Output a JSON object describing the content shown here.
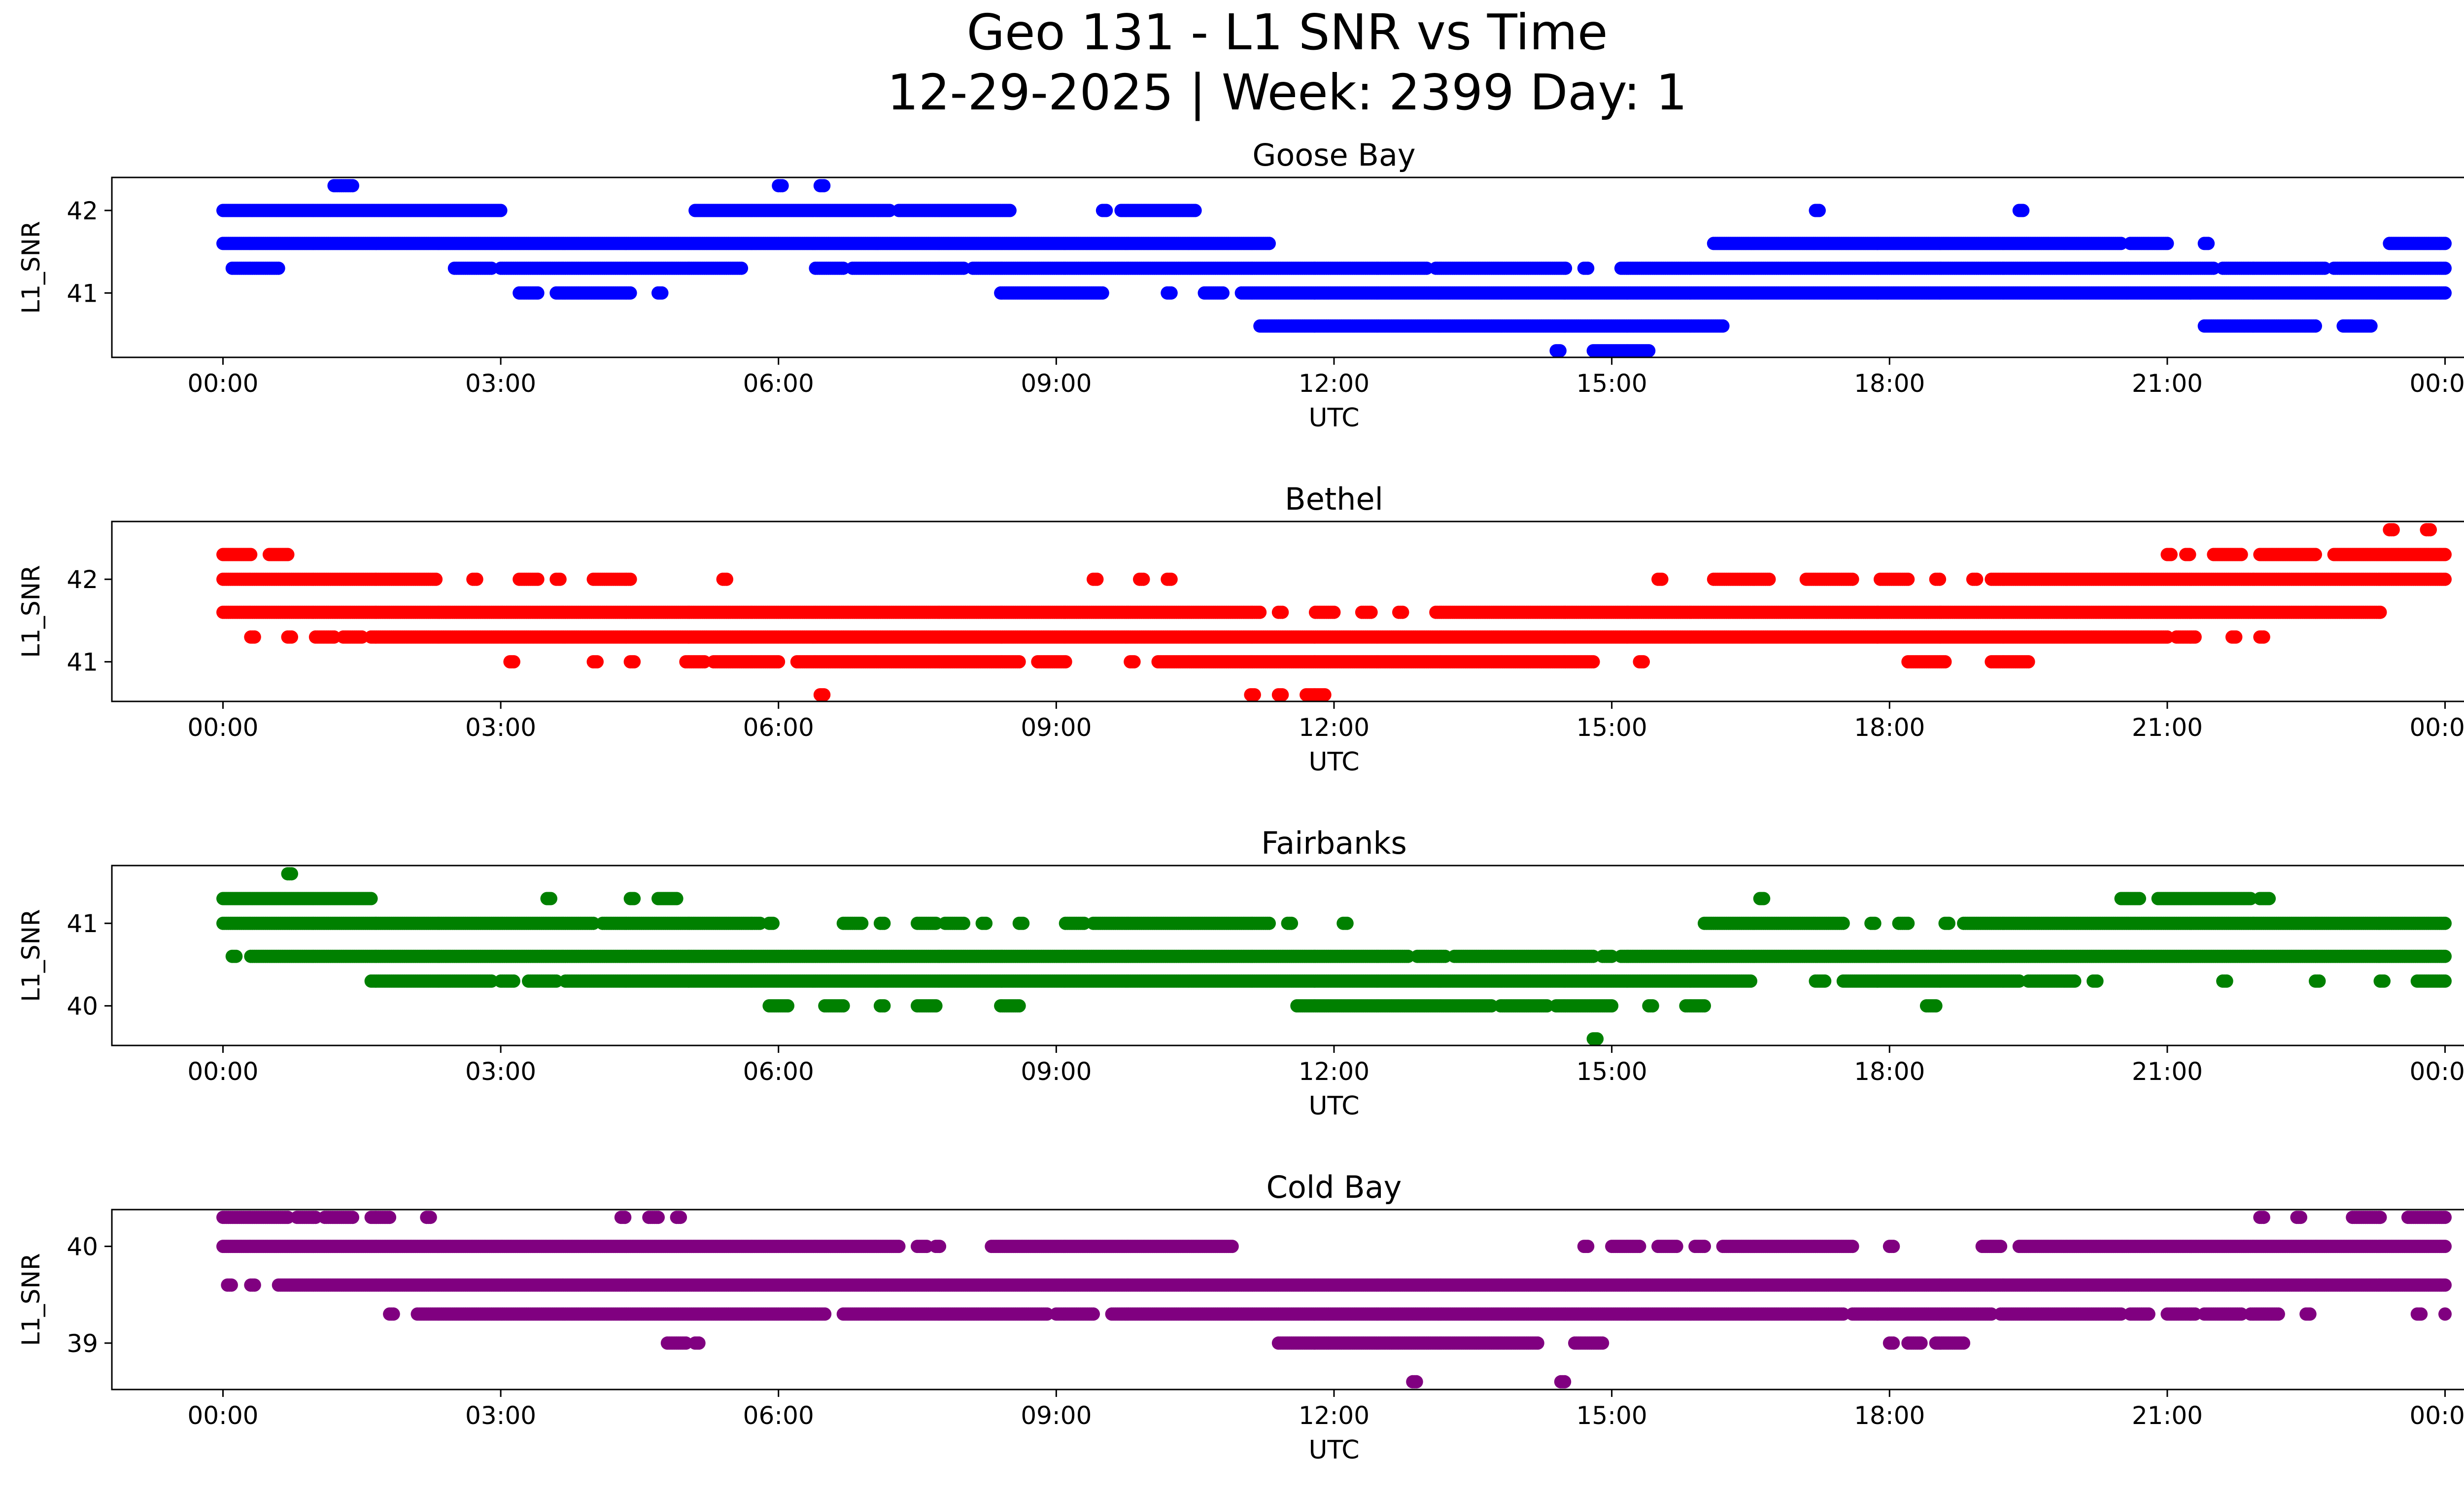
{
  "figure": {
    "title_line1": "Geo 131 - L1 SNR vs Time",
    "title_line2": "12-29-2025 | Week: 2399 Day: 1"
  },
  "chart_data": [
    {
      "type": "scatter",
      "title": "Goose Bay",
      "xlabel": "UTC",
      "ylabel": "L1_SNR",
      "color": "#0000ff",
      "xlim": [
        -1.2,
        25.2
      ],
      "ylim": [
        40.22,
        42.4
      ],
      "xticks": [
        0,
        3,
        6,
        9,
        12,
        15,
        18,
        21,
        24
      ],
      "xtick_labels": [
        "00:00",
        "03:00",
        "06:00",
        "09:00",
        "12:00",
        "15:00",
        "18:00",
        "21:00",
        "00:00"
      ],
      "yticks": [
        41,
        42
      ],
      "ytick_labels": [
        "41",
        "42"
      ],
      "levels": [
        {
          "y": 42.3,
          "segments": [
            [
              1.2,
              1.4
            ],
            [
              6.0,
              6.05
            ],
            [
              6.45,
              6.5
            ]
          ]
        },
        {
          "y": 42.0,
          "segments": [
            [
              0.0,
              3.0
            ],
            [
              5.1,
              7.2
            ],
            [
              7.3,
              8.5
            ],
            [
              9.5,
              9.55
            ],
            [
              9.7,
              10.5
            ],
            [
              17.2,
              17.25
            ],
            [
              19.4,
              19.45
            ]
          ]
        },
        {
          "y": 41.6,
          "segments": [
            [
              0.0,
              11.3
            ],
            [
              16.1,
              20.5
            ],
            [
              20.6,
              21.0
            ],
            [
              21.4,
              21.45
            ],
            [
              23.4,
              24.0
            ]
          ]
        },
        {
          "y": 41.3,
          "segments": [
            [
              0.1,
              0.6
            ],
            [
              2.5,
              2.9
            ],
            [
              3.0,
              5.6
            ],
            [
              6.4,
              6.7
            ],
            [
              6.8,
              8.0
            ],
            [
              8.1,
              13.0
            ],
            [
              13.1,
              14.5
            ],
            [
              14.7,
              14.75
            ],
            [
              15.1,
              21.5
            ],
            [
              21.6,
              22.7
            ],
            [
              22.8,
              24.0
            ]
          ]
        },
        {
          "y": 41.0,
          "segments": [
            [
              3.2,
              3.4
            ],
            [
              3.6,
              4.4
            ],
            [
              4.7,
              4.75
            ],
            [
              8.4,
              9.5
            ],
            [
              10.2,
              10.25
            ],
            [
              10.6,
              10.8
            ],
            [
              11.0,
              24.0
            ]
          ]
        },
        {
          "y": 40.6,
          "segments": [
            [
              11.2,
              16.2
            ],
            [
              21.4,
              22.6
            ],
            [
              22.9,
              23.2
            ]
          ]
        },
        {
          "y": 40.3,
          "segments": [
            [
              14.4,
              14.45
            ],
            [
              14.8,
              15.4
            ]
          ]
        }
      ]
    },
    {
      "type": "scatter",
      "title": "Bethel",
      "xlabel": "UTC",
      "ylabel": "L1_SNR",
      "color": "#ff0000",
      "xlim": [
        -1.2,
        25.2
      ],
      "ylim": [
        40.52,
        42.7
      ],
      "xticks": [
        0,
        3,
        6,
        9,
        12,
        15,
        18,
        21,
        24
      ],
      "xtick_labels": [
        "00:00",
        "03:00",
        "06:00",
        "09:00",
        "12:00",
        "15:00",
        "18:00",
        "21:00",
        "00:00"
      ],
      "yticks": [
        41,
        42
      ],
      "ytick_labels": [
        "41",
        "42"
      ],
      "levels": [
        {
          "y": 42.6,
          "segments": [
            [
              23.4,
              23.45
            ],
            [
              23.8,
              23.85
            ]
          ]
        },
        {
          "y": 42.3,
          "segments": [
            [
              0.0,
              0.3
            ],
            [
              0.5,
              0.7
            ],
            [
              21.0,
              21.05
            ],
            [
              21.2,
              21.25
            ],
            [
              21.5,
              21.8
            ],
            [
              22.0,
              22.6
            ],
            [
              22.8,
              24.0
            ]
          ]
        },
        {
          "y": 42.0,
          "segments": [
            [
              0.0,
              2.3
            ],
            [
              2.7,
              2.75
            ],
            [
              3.2,
              3.4
            ],
            [
              3.6,
              3.65
            ],
            [
              4.0,
              4.4
            ],
            [
              5.4,
              5.45
            ],
            [
              9.4,
              9.45
            ],
            [
              9.9,
              9.95
            ],
            [
              10.2,
              10.25
            ],
            [
              15.5,
              15.55
            ],
            [
              16.1,
              16.7
            ],
            [
              17.1,
              17.6
            ],
            [
              17.9,
              18.2
            ],
            [
              18.5,
              18.55
            ],
            [
              18.9,
              18.95
            ],
            [
              19.1,
              24.0
            ]
          ]
        },
        {
          "y": 41.6,
          "segments": [
            [
              0.0,
              11.2
            ],
            [
              11.4,
              11.45
            ],
            [
              11.8,
              12.0
            ],
            [
              12.3,
              12.4
            ],
            [
              12.7,
              12.75
            ],
            [
              13.1,
              23.3
            ]
          ]
        },
        {
          "y": 41.3,
          "segments": [
            [
              0.3,
              0.35
            ],
            [
              0.7,
              0.75
            ],
            [
              1.0,
              1.2
            ],
            [
              1.3,
              1.5
            ],
            [
              1.6,
              21.0
            ],
            [
              21.1,
              21.3
            ],
            [
              21.7,
              21.75
            ],
            [
              22.0,
              22.05
            ]
          ]
        },
        {
          "y": 41.0,
          "segments": [
            [
              3.1,
              3.15
            ],
            [
              4.0,
              4.05
            ],
            [
              4.4,
              4.45
            ],
            [
              5.0,
              5.2
            ],
            [
              5.3,
              6.0
            ],
            [
              6.2,
              8.6
            ],
            [
              8.8,
              9.1
            ],
            [
              9.8,
              9.85
            ],
            [
              10.1,
              14.8
            ],
            [
              15.3,
              15.35
            ],
            [
              18.2,
              18.6
            ],
            [
              19.1,
              19.5
            ]
          ]
        },
        {
          "y": 40.6,
          "segments": [
            [
              6.45,
              6.5
            ],
            [
              11.1,
              11.15
            ],
            [
              11.4,
              11.45
            ],
            [
              11.7,
              11.9
            ]
          ]
        }
      ]
    },
    {
      "type": "scatter",
      "title": "Fairbanks",
      "xlabel": "UTC",
      "ylabel": "L1_SNR",
      "color": "#008000",
      "xlim": [
        -1.2,
        25.2
      ],
      "ylim": [
        39.52,
        41.7
      ],
      "xticks": [
        0,
        3,
        6,
        9,
        12,
        15,
        18,
        21,
        24
      ],
      "xtick_labels": [
        "00:00",
        "03:00",
        "06:00",
        "09:00",
        "12:00",
        "15:00",
        "18:00",
        "21:00",
        "00:00"
      ],
      "yticks": [
        40,
        41
      ],
      "ytick_labels": [
        "40",
        "41"
      ],
      "levels": [
        {
          "y": 41.6,
          "segments": [
            [
              0.7,
              0.75
            ]
          ]
        },
        {
          "y": 41.3,
          "segments": [
            [
              0.0,
              1.6
            ],
            [
              3.5,
              3.55
            ],
            [
              4.4,
              4.45
            ],
            [
              4.7,
              4.9
            ],
            [
              16.6,
              16.65
            ],
            [
              20.5,
              20.7
            ],
            [
              20.9,
              21.9
            ],
            [
              22.0,
              22.1
            ]
          ]
        },
        {
          "y": 41.0,
          "segments": [
            [
              0.0,
              4.0
            ],
            [
              4.1,
              5.8
            ],
            [
              5.9,
              5.95
            ],
            [
              6.7,
              6.9
            ],
            [
              7.1,
              7.15
            ],
            [
              7.5,
              7.7
            ],
            [
              7.8,
              8.0
            ],
            [
              8.2,
              8.25
            ],
            [
              8.6,
              8.65
            ],
            [
              9.1,
              9.3
            ],
            [
              9.4,
              11.3
            ],
            [
              11.5,
              11.55
            ],
            [
              12.1,
              12.15
            ],
            [
              16.0,
              17.5
            ],
            [
              17.8,
              17.85
            ],
            [
              18.1,
              18.2
            ],
            [
              18.6,
              18.65
            ],
            [
              18.8,
              24.0
            ]
          ]
        },
        {
          "y": 40.6,
          "segments": [
            [
              0.1,
              0.15
            ],
            [
              0.3,
              12.8
            ],
            [
              12.9,
              13.2
            ],
            [
              13.3,
              14.8
            ],
            [
              14.9,
              15.0
            ],
            [
              15.1,
              24.0
            ]
          ]
        },
        {
          "y": 40.3,
          "segments": [
            [
              1.6,
              2.9
            ],
            [
              3.0,
              3.15
            ],
            [
              3.3,
              3.6
            ],
            [
              3.7,
              16.5
            ],
            [
              17.2,
              17.3
            ],
            [
              17.5,
              19.4
            ],
            [
              19.5,
              20.0
            ],
            [
              20.2,
              20.25
            ],
            [
              21.6,
              21.65
            ],
            [
              22.6,
              22.65
            ],
            [
              23.3,
              23.35
            ],
            [
              23.7,
              24.0
            ]
          ]
        },
        {
          "y": 40.0,
          "segments": [
            [
              5.9,
              6.1
            ],
            [
              6.5,
              6.7
            ],
            [
              7.1,
              7.15
            ],
            [
              7.5,
              7.7
            ],
            [
              8.4,
              8.6
            ],
            [
              11.6,
              13.7
            ],
            [
              13.8,
              14.3
            ],
            [
              14.4,
              15.0
            ],
            [
              15.4,
              15.45
            ],
            [
              15.8,
              16.0
            ],
            [
              18.4,
              18.5
            ]
          ]
        },
        {
          "y": 39.6,
          "segments": [
            [
              14.8,
              14.85
            ]
          ]
        }
      ]
    },
    {
      "type": "scatter",
      "title": "Cold Bay",
      "xlabel": "UTC",
      "ylabel": "L1_SNR",
      "color": "#800080",
      "xlim": [
        -1.2,
        25.2
      ],
      "ylim": [
        38.52,
        40.38
      ],
      "xticks": [
        0,
        3,
        6,
        9,
        12,
        15,
        18,
        21,
        24
      ],
      "xtick_labels": [
        "00:00",
        "03:00",
        "06:00",
        "09:00",
        "12:00",
        "15:00",
        "18:00",
        "21:00",
        "00:00"
      ],
      "yticks": [
        39,
        40
      ],
      "ytick_labels": [
        "39",
        "40"
      ],
      "levels": [
        {
          "y": 40.3,
          "segments": [
            [
              0.0,
              0.7
            ],
            [
              0.8,
              1.0
            ],
            [
              1.1,
              1.4
            ],
            [
              1.6,
              1.8
            ],
            [
              2.2,
              2.25
            ],
            [
              4.3,
              4.35
            ],
            [
              4.6,
              4.7
            ],
            [
              4.9,
              4.95
            ],
            [
              22.0,
              22.05
            ],
            [
              22.4,
              22.45
            ],
            [
              23.0,
              23.3
            ],
            [
              23.6,
              24.0
            ]
          ]
        },
        {
          "y": 40.0,
          "segments": [
            [
              0.0,
              7.3
            ],
            [
              7.5,
              7.6
            ],
            [
              7.7,
              7.75
            ],
            [
              8.3,
              10.9
            ],
            [
              14.7,
              14.75
            ],
            [
              15.0,
              15.3
            ],
            [
              15.5,
              15.7
            ],
            [
              15.9,
              16.0
            ],
            [
              16.2,
              17.6
            ],
            [
              18.0,
              18.05
            ],
            [
              19.0,
              19.2
            ],
            [
              19.4,
              24.0
            ]
          ]
        },
        {
          "y": 39.6,
          "segments": [
            [
              0.05,
              0.1
            ],
            [
              0.3,
              0.35
            ],
            [
              0.6,
              24.0
            ]
          ]
        },
        {
          "y": 39.3,
          "segments": [
            [
              1.8,
              1.85
            ],
            [
              2.1,
              6.5
            ],
            [
              6.7,
              8.9
            ],
            [
              9.0,
              9.4
            ],
            [
              9.6,
              17.5
            ],
            [
              17.6,
              19.1
            ],
            [
              19.2,
              20.5
            ],
            [
              20.6,
              20.8
            ],
            [
              21.0,
              21.3
            ],
            [
              21.4,
              21.8
            ],
            [
              21.9,
              22.2
            ],
            [
              22.5,
              22.55
            ],
            [
              23.7,
              23.75
            ],
            [
              24.0,
              24.0
            ]
          ]
        },
        {
          "y": 39.0,
          "segments": [
            [
              4.8,
              5.0
            ],
            [
              5.1,
              5.15
            ],
            [
              11.4,
              14.2
            ],
            [
              14.6,
              14.9
            ],
            [
              18.0,
              18.05
            ],
            [
              18.2,
              18.35
            ],
            [
              18.5,
              18.8
            ]
          ]
        },
        {
          "y": 38.6,
          "segments": [
            [
              12.85,
              12.9
            ],
            [
              14.45,
              14.5
            ]
          ]
        }
      ]
    }
  ]
}
